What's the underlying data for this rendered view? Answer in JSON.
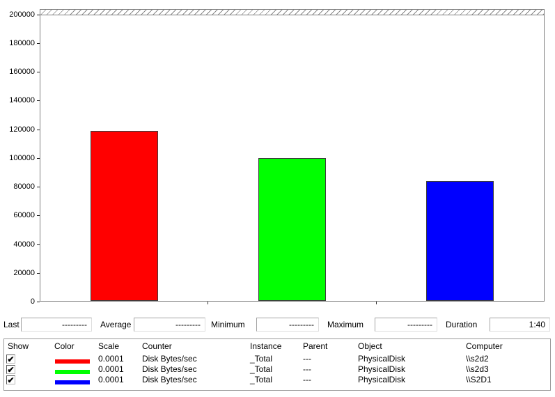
{
  "chart_data": {
    "type": "bar",
    "title": "",
    "xlabel": "",
    "ylabel": "",
    "ylim": [
      0,
      200000
    ],
    "ytick_interval": 20000,
    "ytick_labels": [
      "200000",
      "180000",
      "160000",
      "140000",
      "120000",
      "100000",
      "80000",
      "60000",
      "40000",
      "20000",
      "0"
    ],
    "grid": false,
    "legend_position": "bottom-table",
    "categories": [
      "\\\\s2d2",
      "\\\\s2d3",
      "\\\\S2D1"
    ],
    "series": [
      {
        "name": "\\\\s2d2",
        "color": "#ff0000",
        "value": 119000
      },
      {
        "name": "\\\\s2d3",
        "color": "#00ff00",
        "value": 99800
      },
      {
        "name": "\\\\S2D1",
        "color": "#0000ff",
        "value": 83700
      }
    ]
  },
  "stats": {
    "items": [
      {
        "label": "Last",
        "value": "---------"
      },
      {
        "label": "Average",
        "value": "---------"
      },
      {
        "label": "Minimum",
        "value": "---------"
      },
      {
        "label": "Maximum",
        "value": "---------"
      },
      {
        "label": "Duration",
        "value": "1:40"
      }
    ]
  },
  "legend": {
    "columns": {
      "show": "Show",
      "color": "Color",
      "scale": "Scale",
      "counter": "Counter",
      "instance": "Instance",
      "parent": "Parent",
      "object": "Object",
      "computer": "Computer"
    },
    "check_glyph": "✔",
    "rows": [
      {
        "checked": true,
        "color": "#ff0000",
        "scale": "0.0001",
        "counter": "Disk Bytes/sec",
        "instance": "_Total",
        "parent": "---",
        "object": "PhysicalDisk",
        "computer": "\\\\s2d2"
      },
      {
        "checked": true,
        "color": "#00ff00",
        "scale": "0.0001",
        "counter": "Disk Bytes/sec",
        "instance": "_Total",
        "parent": "---",
        "object": "PhysicalDisk",
        "computer": "\\\\s2d3"
      },
      {
        "checked": true,
        "color": "#0000ff",
        "scale": "0.0001",
        "counter": "Disk Bytes/sec",
        "instance": "_Total",
        "parent": "---",
        "object": "PhysicalDisk",
        "computer": "\\\\S2D1"
      }
    ]
  }
}
